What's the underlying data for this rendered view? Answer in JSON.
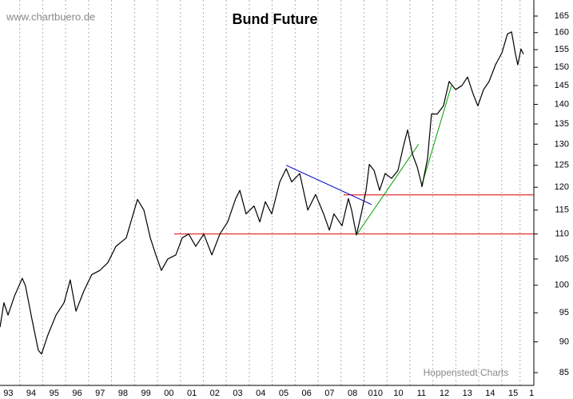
{
  "chart_data": {
    "type": "line",
    "title": "Bund Future",
    "source": "www.chartbuero.de",
    "credit": "Hoppenstedt Charts",
    "log_scale": true,
    "grid": true,
    "xlim": [
      1993.14,
      2016.4
    ],
    "ylim": [
      83,
      170
    ],
    "yticks": [
      85,
      90,
      95,
      100,
      105,
      110,
      115,
      120,
      125,
      130,
      135,
      140,
      145,
      150,
      155,
      160,
      165
    ],
    "xticks": [
      {
        "value": 1993.5,
        "label": "93"
      },
      {
        "value": 1994.5,
        "label": "94"
      },
      {
        "value": 1995.5,
        "label": "95"
      },
      {
        "value": 1996.5,
        "label": "96"
      },
      {
        "value": 1997.5,
        "label": "97"
      },
      {
        "value": 1998.5,
        "label": "98"
      },
      {
        "value": 1999.5,
        "label": "99"
      },
      {
        "value": 2000.5,
        "label": "00"
      },
      {
        "value": 2001.5,
        "label": "01"
      },
      {
        "value": 2002.5,
        "label": "02"
      },
      {
        "value": 2003.5,
        "label": "03"
      },
      {
        "value": 2004.5,
        "label": "04"
      },
      {
        "value": 2005.5,
        "label": "05"
      },
      {
        "value": 2006.5,
        "label": "06"
      },
      {
        "value": 2007.5,
        "label": "07"
      },
      {
        "value": 2008.5,
        "label": "08"
      },
      {
        "value": 2009.5,
        "label": "010"
      },
      {
        "value": 2010.5,
        "label": "10"
      },
      {
        "value": 2011.5,
        "label": "11"
      },
      {
        "value": 2012.5,
        "label": "12"
      },
      {
        "value": 2013.5,
        "label": "13"
      },
      {
        "value": 2014.5,
        "label": "14"
      },
      {
        "value": 2015.5,
        "label": "15"
      },
      {
        "value": 2016.3,
        "label": "1"
      }
    ],
    "series": [
      {
        "name": "Bund Future",
        "color": "#000000",
        "x": [
          1993.14,
          1993.31,
          1993.49,
          1993.77,
          1994.11,
          1994.25,
          1994.53,
          1994.81,
          1994.95,
          1995.23,
          1995.58,
          1995.93,
          1996.2,
          1996.45,
          1996.8,
          1997.14,
          1997.49,
          1997.84,
          1998.19,
          1998.64,
          1998.89,
          1999.13,
          1999.41,
          1999.69,
          1999.93,
          2000.17,
          2000.45,
          2000.8,
          2001.08,
          2001.36,
          2001.67,
          2002.02,
          2002.37,
          2002.72,
          2003.06,
          2003.41,
          2003.59,
          2003.86,
          2004.21,
          2004.46,
          2004.7,
          2004.98,
          2005.33,
          2005.61,
          2005.85,
          2006.2,
          2006.55,
          2006.89,
          2007.24,
          2007.49,
          2007.69,
          2008.04,
          2008.32,
          2008.46,
          2008.67,
          2008.88,
          2009.09,
          2009.23,
          2009.44,
          2009.68,
          2009.92,
          2010.2,
          2010.48,
          2010.72,
          2010.9,
          2011.11,
          2011.32,
          2011.53,
          2011.77,
          2011.94,
          2012.19,
          2012.46,
          2012.71,
          2012.99,
          2013.27,
          2013.51,
          2013.75,
          2013.96,
          2014.21,
          2014.45,
          2014.73,
          2015.01,
          2015.25,
          2015.43,
          2015.6,
          2015.7,
          2015.84,
          2015.95
        ],
        "values": [
          92.5,
          96.8,
          94.6,
          98,
          101.3,
          99.9,
          93.9,
          88.6,
          88,
          91.2,
          94.6,
          96.8,
          101,
          95.3,
          99,
          102,
          102.8,
          104.3,
          107.5,
          109.2,
          113.3,
          117.3,
          115,
          109.2,
          105.8,
          102.8,
          105,
          105.8,
          109.2,
          110,
          107.5,
          110,
          105.8,
          110,
          112.5,
          117.5,
          119.3,
          114.2,
          115.9,
          112.5,
          116.8,
          114.2,
          121.2,
          124.2,
          121.2,
          123.1,
          115,
          118.4,
          114.2,
          110.8,
          114.2,
          111.7,
          117.5,
          115,
          109.8,
          114.2,
          119.3,
          125.2,
          123.8,
          119.3,
          123.1,
          122,
          123.8,
          129.6,
          133.5,
          127.6,
          124.6,
          120.2,
          126.6,
          137.5,
          137.5,
          139.6,
          146.1,
          143.9,
          145,
          147.3,
          142.8,
          139.6,
          143.9,
          146.1,
          150.7,
          154.1,
          159.6,
          160.2,
          153.7,
          150.7,
          155.2,
          153.7
        ]
      }
    ],
    "lines": [
      {
        "color": "#e00000",
        "x": [
          2000.73,
          2016.4
        ],
        "y": [
          110,
          110
        ]
      },
      {
        "color": "#e00000",
        "x": [
          2008.11,
          2016.4
        ],
        "y": [
          118.3,
          118.3
        ]
      },
      {
        "color": "#0000c8",
        "x": [
          2005.61,
          2009.33
        ],
        "y": [
          125,
          116.2
        ]
      },
      {
        "color": "#00a000",
        "x": [
          2008.67,
          2011.38
        ],
        "y": [
          109.8,
          130
        ]
      },
      {
        "color": "#00a000",
        "x": [
          2011.49,
          2012.81
        ],
        "y": [
          120,
          145
        ]
      }
    ]
  }
}
